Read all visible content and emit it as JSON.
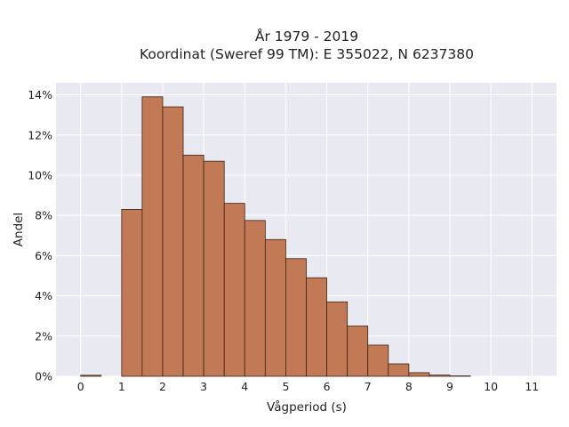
{
  "chart_data": {
    "type": "bar",
    "title": [
      "År 1979 - 2019",
      "Koordinat (Sweref 99 TM): E 355022, N 6237380"
    ],
    "xlabel": "Vågperiod (s)",
    "ylabel": "Andel",
    "xlim": [
      -0.6,
      11.6
    ],
    "ylim": [
      0,
      14.6
    ],
    "xticks": [
      0,
      1,
      2,
      3,
      4,
      5,
      6,
      7,
      8,
      9,
      10,
      11
    ],
    "yticks": [
      0,
      2,
      4,
      6,
      8,
      10,
      12,
      14
    ],
    "ytick_labels": [
      "0%",
      "2%",
      "4%",
      "6%",
      "8%",
      "10%",
      "12%",
      "14%"
    ],
    "bin_width": 0.5,
    "bins": [
      {
        "start": 0.0,
        "value": 0.05
      },
      {
        "start": 1.0,
        "value": 8.3
      },
      {
        "start": 1.5,
        "value": 13.9
      },
      {
        "start": 2.0,
        "value": 13.4
      },
      {
        "start": 2.5,
        "value": 11.0
      },
      {
        "start": 3.0,
        "value": 10.7
      },
      {
        "start": 3.5,
        "value": 8.6
      },
      {
        "start": 4.0,
        "value": 7.75
      },
      {
        "start": 4.5,
        "value": 6.8
      },
      {
        "start": 5.0,
        "value": 5.85
      },
      {
        "start": 5.5,
        "value": 4.9
      },
      {
        "start": 6.0,
        "value": 3.7
      },
      {
        "start": 6.5,
        "value": 2.5
      },
      {
        "start": 7.0,
        "value": 1.55
      },
      {
        "start": 7.5,
        "value": 0.62
      },
      {
        "start": 8.0,
        "value": 0.18
      },
      {
        "start": 8.5,
        "value": 0.06
      },
      {
        "start": 9.0,
        "value": 0.02
      }
    ],
    "grid": true,
    "colors": {
      "bar": "#c17a55",
      "bar_edge": "#3d2417",
      "plot_background": "#e9e9f1",
      "grid": "#ffffff"
    }
  }
}
